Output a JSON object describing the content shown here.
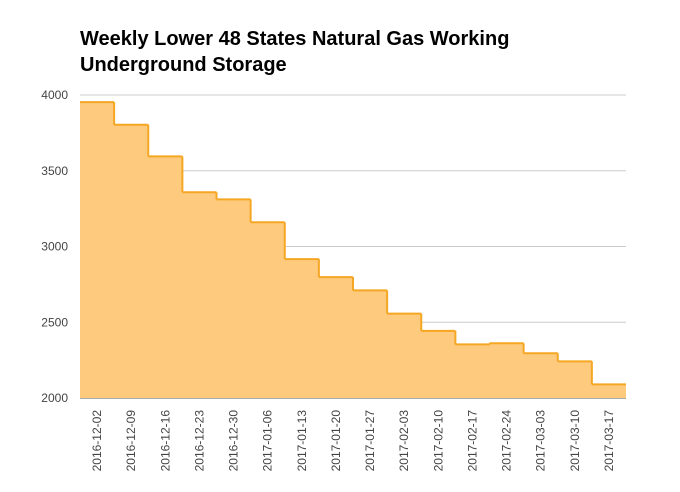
{
  "chart_data": {
    "type": "area",
    "step": "post",
    "title": "Weekly Lower 48 States Natural Gas Working Underground Storage",
    "xlabel": "",
    "ylabel": "",
    "categories": [
      "2016-12-02",
      "2016-12-09",
      "2016-12-16",
      "2016-12-23",
      "2016-12-30",
      "2017-01-06",
      "2017-01-13",
      "2017-01-20",
      "2017-01-27",
      "2017-02-03",
      "2017-02-10",
      "2017-02-17",
      "2017-02-24",
      "2017-03-03",
      "2017-03-10",
      "2017-03-17"
    ],
    "values": [
      3953,
      3804,
      3595,
      3358,
      3311,
      3160,
      2917,
      2798,
      2710,
      2557,
      2443,
      2354,
      2361,
      2295,
      2242,
      2090
    ],
    "ylim": [
      2000,
      4000
    ],
    "yticks": [
      2000,
      2500,
      3000,
      3500,
      4000
    ],
    "grid": true,
    "series_color": "#f5a623",
    "fill_color": "#fecb7e"
  }
}
